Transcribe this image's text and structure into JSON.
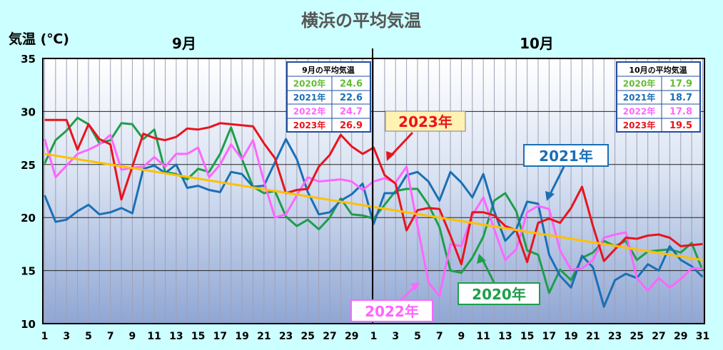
{
  "colors": {
    "s2020": "#1e9e4a",
    "s2021": "#1a6fb5",
    "s2022": "#ff66ff",
    "s2023": "#e8141e",
    "normal": "#ffc000",
    "box2020": "#66bb33",
    "bg": "#ccffff"
  },
  "chart_data": {
    "type": "line",
    "title": "横浜の平均気温",
    "ylabel": "気温 (℃)",
    "ylim": [
      10,
      35
    ],
    "yticks": [
      "35",
      "30",
      "25",
      "20",
      "15",
      "10"
    ],
    "month_labels": [
      "9月",
      "10月"
    ],
    "x_ticks": [
      "1",
      "3",
      "5",
      "7",
      "9",
      "11",
      "13",
      "15",
      "17",
      "19",
      "21",
      "23",
      "25",
      "27",
      "29",
      "1",
      "3",
      "5",
      "7",
      "9",
      "11",
      "13",
      "15",
      "17",
      "19",
      "21",
      "23",
      "25",
      "27",
      "29",
      "31"
    ],
    "normal": {
      "start": 26,
      "end": 16
    },
    "series": [
      {
        "name": "2020年",
        "key": "s2020",
        "values": [
          25.1,
          27.3,
          28.2,
          29.4,
          28.8,
          27.0,
          27.3,
          28.9,
          28.8,
          27.4,
          28.3,
          24.3,
          24.1,
          23.6,
          24.6,
          24.3,
          26.0,
          28.5,
          25.5,
          22.9,
          22.3,
          22.5,
          20.1,
          19.2,
          19.8,
          18.9,
          20.0,
          21.8,
          20.3,
          20.2,
          19.9,
          21.2,
          22.5,
          22.7,
          22.7,
          21.2,
          19.1,
          15.0,
          14.8,
          16.2,
          18.2,
          21.6,
          22.3,
          20.6,
          16.9,
          16.5,
          12.9,
          15.1,
          14.1,
          16.2,
          16.7,
          17.8,
          17.3,
          17.8,
          16.0,
          16.8,
          16.9,
          17.0,
          16.7,
          17.6,
          15.0
        ]
      },
      {
        "name": "2021年",
        "key": "s2021",
        "values": [
          22.1,
          19.6,
          19.8,
          20.6,
          21.2,
          20.3,
          20.5,
          20.9,
          20.4,
          24.6,
          24.9,
          24.2,
          25.0,
          22.8,
          23.0,
          22.6,
          22.4,
          24.3,
          24.1,
          22.9,
          23.0,
          25.2,
          27.4,
          25.5,
          22.4,
          20.3,
          20.5,
          21.6,
          22.2,
          23.2,
          19.4,
          22.3,
          22.3,
          24.0,
          24.3,
          23.4,
          21.6,
          24.3,
          23.3,
          21.9,
          24.1,
          20.6,
          17.8,
          18.9,
          21.5,
          21.3,
          16.5,
          14.5,
          13.4,
          16.4,
          15.3,
          11.6,
          14.1,
          14.7,
          14.3,
          15.6,
          15.0,
          17.3,
          16.0,
          15.4,
          14.4
        ]
      },
      {
        "name": "2022年",
        "key": "s2022",
        "values": [
          27.4,
          23.8,
          24.9,
          26.0,
          26.4,
          26.9,
          27.8,
          24.5,
          24.7,
          24.8,
          25.7,
          24.8,
          26.0,
          26.0,
          26.6,
          23.8,
          25.0,
          26.9,
          25.5,
          27.3,
          23.4,
          20.0,
          20.3,
          22.1,
          23.8,
          23.4,
          23.5,
          23.6,
          23.4,
          22.6,
          23.4,
          23.7,
          23.3,
          24.8,
          19.2,
          13.9,
          12.6,
          17.5,
          17.3,
          20.2,
          21.9,
          18.9,
          16.0,
          17.0,
          20.5,
          21.1,
          20.8,
          16.9,
          15.1,
          15.2,
          16.0,
          18.1,
          18.4,
          18.6,
          14.3,
          13.1,
          14.3,
          13.4,
          14.2,
          15.2,
          15.2
        ]
      },
      {
        "name": "2023年",
        "key": "s2023",
        "values": [
          29.2,
          29.2,
          29.2,
          26.4,
          28.8,
          27.4,
          26.9,
          21.7,
          24.8,
          27.9,
          27.5,
          27.3,
          27.6,
          28.4,
          28.3,
          28.5,
          28.9,
          28.8,
          28.7,
          28.6,
          27.0,
          25.6,
          22.3,
          22.6,
          22.7,
          24.8,
          25.9,
          27.8,
          26.7,
          26.0,
          26.6,
          24.0,
          23.2,
          18.8,
          20.7,
          20.9,
          20.8,
          18.3,
          15.6,
          20.5,
          20.5,
          20.2,
          19.2,
          18.8,
          15.8,
          19.5,
          19.9,
          19.5,
          20.9,
          22.9,
          19.2,
          15.9,
          17.0,
          18.1,
          18.0,
          18.3,
          18.4,
          18.1,
          17.3,
          17.4,
          17.5
        ]
      }
    ],
    "legend_boxes": [
      {
        "title": "9月の平均気温",
        "rows": [
          {
            "year": "2020年",
            "value": "24.6",
            "key": "box2020"
          },
          {
            "year": "2021年",
            "value": "22.6",
            "key": "s2021"
          },
          {
            "year": "2022年",
            "value": "24.7",
            "key": "s2022"
          },
          {
            "year": "2023年",
            "value": "26.9",
            "key": "s2023"
          }
        ]
      },
      {
        "title": "10月の平均気温",
        "rows": [
          {
            "year": "2020年",
            "value": "17.9",
            "key": "box2020"
          },
          {
            "year": "2021年",
            "value": "18.7",
            "key": "s2021"
          },
          {
            "year": "2022年",
            "value": "17.8",
            "key": "s2022"
          },
          {
            "year": "2023年",
            "value": "19.5",
            "key": "s2023"
          }
        ]
      }
    ],
    "callouts": [
      {
        "text": "2023年",
        "key": "s2023"
      },
      {
        "text": "2021年",
        "key": "s2021"
      },
      {
        "text": "2020年",
        "key": "s2020"
      },
      {
        "text": "2022年",
        "key": "s2022"
      }
    ]
  }
}
